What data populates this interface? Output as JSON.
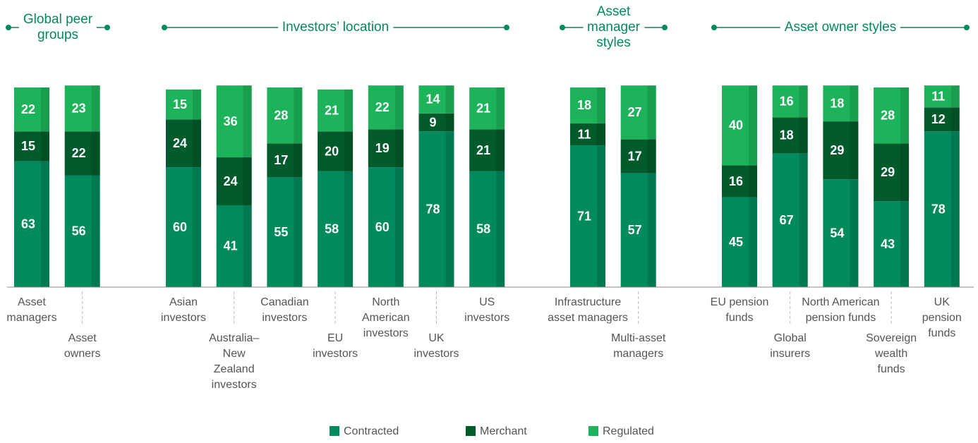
{
  "chart_data": {
    "type": "bar",
    "stacked": true,
    "ylim": [
      0,
      100
    ],
    "groups": [
      {
        "name": "Global peer\ngroups",
        "categories": [
          "Asset\nmanagers",
          "Asset\nowners"
        ]
      },
      {
        "name": "Investors’ location",
        "categories": [
          "Asian\ninvestors",
          "Australia–\nNew\nZealand\ninvestors",
          "Canadian\ninvestors",
          "EU\ninvestors",
          "North\nAmerican\ninvestors",
          "UK\ninvestors",
          "US\ninvestors"
        ]
      },
      {
        "name": "Asset\nmanager\nstyles",
        "categories": [
          "Infrastructure\nasset managers",
          "Multi-asset\nmanagers"
        ]
      },
      {
        "name": "Asset owner styles",
        "categories": [
          "EU pension\nfunds",
          "Global\ninsurers",
          "North American\npension funds",
          "Sovereign\nwealth\nfunds",
          "UK\npension\nfunds"
        ]
      }
    ],
    "series": [
      {
        "name": "Contracted",
        "color": "#008a5e",
        "values": [
          63,
          56,
          60,
          41,
          55,
          58,
          60,
          78,
          58,
          71,
          57,
          45,
          67,
          54,
          43,
          78
        ]
      },
      {
        "name": "Merchant",
        "color": "#005a2b",
        "values": [
          15,
          22,
          24,
          24,
          17,
          20,
          19,
          9,
          21,
          11,
          17,
          16,
          18,
          29,
          29,
          12
        ]
      },
      {
        "name": "Regulated",
        "color": "#1db35a",
        "values": [
          22,
          23,
          15,
          36,
          28,
          21,
          22,
          14,
          21,
          18,
          27,
          40,
          16,
          18,
          28,
          11
        ]
      }
    ]
  }
}
